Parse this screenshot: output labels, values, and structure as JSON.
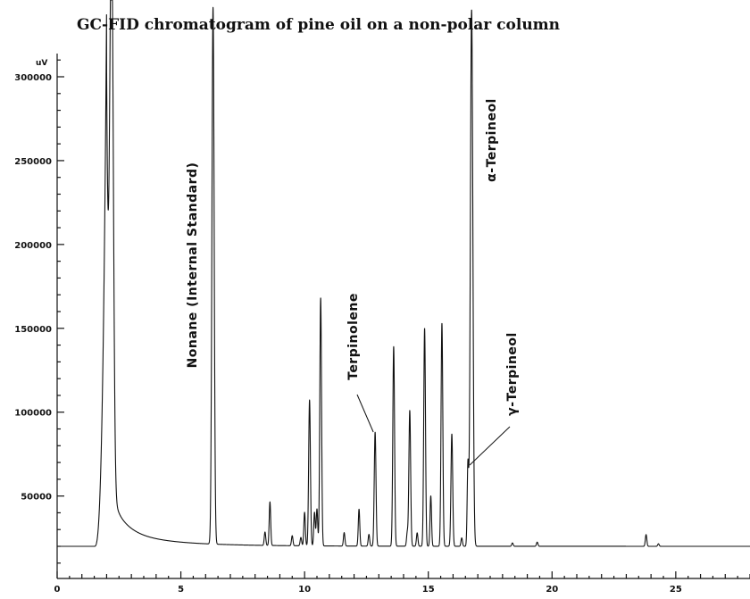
{
  "chart_data": {
    "type": "line",
    "title": "GC-FID chromatogram of pine oil on a non-polar column",
    "xlabel": "",
    "ylabel": "",
    "y_unit_label": "uV",
    "xlim": [
      0,
      28
    ],
    "ylim": [
      0,
      320000
    ],
    "baseline": 20000,
    "grid": false,
    "x_ticks": [
      0,
      5,
      10,
      15,
      20,
      25
    ],
    "y_ticks": [
      50000,
      100000,
      150000,
      200000,
      250000,
      300000
    ],
    "solvent_front": {
      "start": 1.5,
      "peak_rt": 2.0,
      "peak_height": 340000,
      "tail_decay": 0.55
    },
    "peaks": [
      {
        "rt": 2.2,
        "height": 340000,
        "width": 0.07
      },
      {
        "rt": 6.3,
        "height": 340000,
        "width": 0.045
      },
      {
        "rt": 8.4,
        "height": 28000,
        "width": 0.03
      },
      {
        "rt": 8.6,
        "height": 46000,
        "width": 0.03
      },
      {
        "rt": 9.5,
        "height": 26000,
        "width": 0.03
      },
      {
        "rt": 9.85,
        "height": 25000,
        "width": 0.03
      },
      {
        "rt": 10.0,
        "height": 40000,
        "width": 0.03
      },
      {
        "rt": 10.2,
        "height": 107000,
        "width": 0.035
      },
      {
        "rt": 10.4,
        "height": 40000,
        "width": 0.03
      },
      {
        "rt": 10.5,
        "height": 42000,
        "width": 0.03
      },
      {
        "rt": 10.65,
        "height": 168000,
        "width": 0.035
      },
      {
        "rt": 11.6,
        "height": 28000,
        "width": 0.03
      },
      {
        "rt": 12.2,
        "height": 42000,
        "width": 0.03
      },
      {
        "rt": 12.6,
        "height": 27000,
        "width": 0.03
      },
      {
        "rt": 12.85,
        "height": 88000,
        "width": 0.035
      },
      {
        "rt": 13.6,
        "height": 139000,
        "width": 0.035
      },
      {
        "rt": 14.15,
        "height": 28000,
        "width": 0.03
      },
      {
        "rt": 14.25,
        "height": 101000,
        "width": 0.035
      },
      {
        "rt": 14.55,
        "height": 28000,
        "width": 0.03
      },
      {
        "rt": 14.85,
        "height": 150000,
        "width": 0.035
      },
      {
        "rt": 15.1,
        "height": 50000,
        "width": 0.03
      },
      {
        "rt": 15.55,
        "height": 153000,
        "width": 0.035
      },
      {
        "rt": 15.95,
        "height": 87000,
        "width": 0.035
      },
      {
        "rt": 16.35,
        "height": 25000,
        "width": 0.03
      },
      {
        "rt": 16.6,
        "height": 68000,
        "width": 0.03
      },
      {
        "rt": 16.75,
        "height": 340000,
        "width": 0.05
      },
      {
        "rt": 18.4,
        "height": 22000,
        "width": 0.03
      },
      {
        "rt": 19.4,
        "height": 22500,
        "width": 0.03
      },
      {
        "rt": 23.8,
        "height": 27000,
        "width": 0.03
      },
      {
        "rt": 24.3,
        "height": 21500,
        "width": 0.03
      }
    ],
    "annotations": [
      {
        "text": "Nonane (Internal Standard)",
        "rt": 6.3
      },
      {
        "text": "Terpinolene",
        "rt": 12.85
      },
      {
        "text": "α-Terpineol",
        "rt": 16.75
      },
      {
        "text": "γ-Terpineol",
        "rt": 16.6
      }
    ]
  }
}
